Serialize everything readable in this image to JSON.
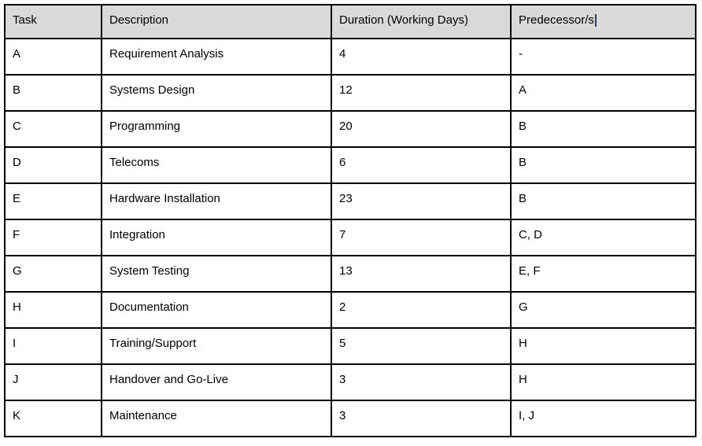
{
  "table": {
    "columns": [
      {
        "id": "task",
        "label": "Task"
      },
      {
        "id": "description",
        "label": "Description"
      },
      {
        "id": "duration",
        "label": "Duration (Working Days)"
      },
      {
        "id": "predecessors",
        "label": "Predecessor/s"
      }
    ],
    "rows": [
      {
        "task": "A",
        "description": "Requirement Analysis",
        "duration": "4",
        "predecessors": "-"
      },
      {
        "task": "B",
        "description": "Systems Design",
        "duration": "12",
        "predecessors": "A"
      },
      {
        "task": "C",
        "description": "Programming",
        "duration": "20",
        "predecessors": "B"
      },
      {
        "task": "D",
        "description": "Telecoms",
        "duration": "6",
        "predecessors": "B"
      },
      {
        "task": "E",
        "description": "Hardware Installation",
        "duration": "23",
        "predecessors": "B"
      },
      {
        "task": "F",
        "description": "Integration",
        "duration": "7",
        "predecessors": "C, D"
      },
      {
        "task": "G",
        "description": "System Testing",
        "duration": "13",
        "predecessors": "E, F"
      },
      {
        "task": "H",
        "description": "Documentation",
        "duration": "2",
        "predecessors": "G"
      },
      {
        "task": "I",
        "description": "Training/Support",
        "duration": "5",
        "predecessors": "H"
      },
      {
        "task": "J",
        "description": "Handover and Go-Live",
        "duration": "3",
        "predecessors": "H"
      },
      {
        "task": "K",
        "description": "Maintenance",
        "duration": "3",
        "predecessors": "I, J"
      }
    ]
  },
  "colors": {
    "header_fill": "#d9d9d9",
    "border": "#000000",
    "text": "#000000",
    "caret": "#2b415a"
  }
}
